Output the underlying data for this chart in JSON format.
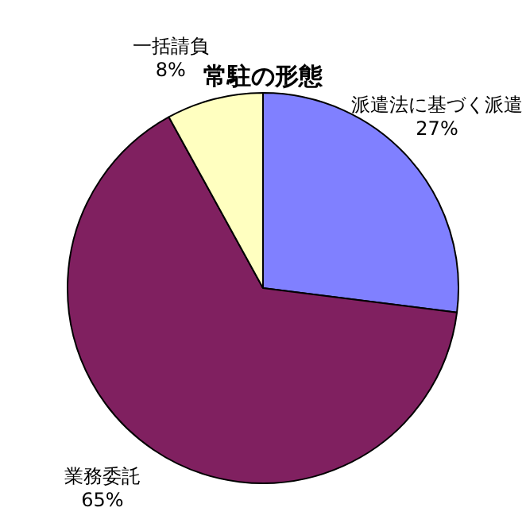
{
  "chart_data": {
    "type": "pie",
    "title": "常駐の形態",
    "categories": [
      "派遣法に基づく派遣",
      "業務委託",
      "一括請負"
    ],
    "values": [
      27,
      65,
      8
    ],
    "value_labels": [
      "27%",
      "65%",
      "8%"
    ],
    "colors": [
      "#8080ff",
      "#802060",
      "#ffffc0"
    ],
    "legend": false
  }
}
